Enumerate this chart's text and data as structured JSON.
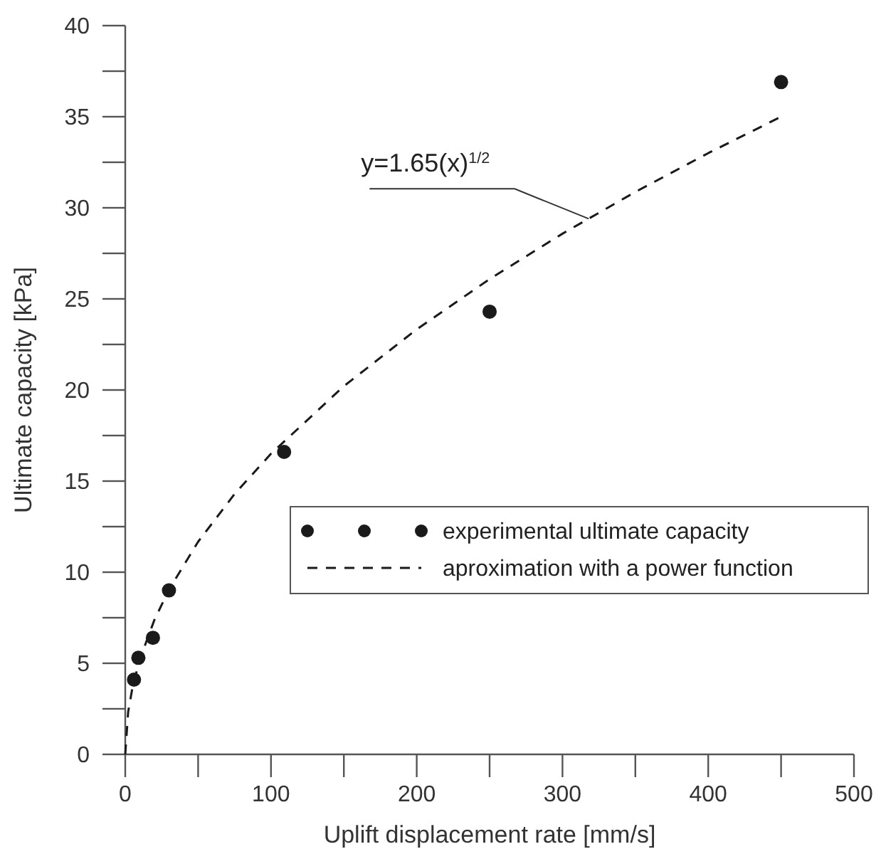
{
  "chart_data": {
    "type": "scatter",
    "xlabel": "Uplift displacement rate [mm/s]",
    "ylabel": "Ultimate capacity [kPa]",
    "xlim": [
      0,
      500
    ],
    "ylim": [
      0,
      40
    ],
    "xticks": [
      0,
      {
        "value": 50,
        "label": null
      },
      100,
      {
        "value": 150,
        "label": null
      },
      200,
      {
        "value": 250,
        "label": null
      },
      300,
      {
        "value": 350,
        "label": null
      },
      400,
      {
        "value": 450,
        "label": null
      },
      500
    ],
    "yticks": [
      0,
      {
        "value": 2.5,
        "label": null
      },
      5,
      {
        "value": 7.5,
        "label": null
      },
      10,
      {
        "value": 12.5,
        "label": null
      },
      15,
      {
        "value": 17.5,
        "label": null
      },
      20,
      {
        "value": 22.5,
        "label": null
      },
      25,
      {
        "value": 27.5,
        "label": null
      },
      30,
      {
        "value": 32.5,
        "label": null
      },
      35,
      {
        "value": 37.5,
        "label": null
      },
      40
    ],
    "grid": false,
    "legend": "right",
    "annotations": [
      {
        "text": "y=1.65(x)$^{1/2}$",
        "x": 318,
        "y": 29.4
      }
    ],
    "series": [
      {
        "name": "experimental ultimate capacity",
        "color": "#1a1a1a",
        "marker": "circle",
        "x": [
          6,
          9,
          19,
          30,
          109,
          250,
          450
        ],
        "values": [
          4.1,
          5.3,
          6.4,
          9.0,
          16.6,
          24.3,
          36.9
        ]
      },
      {
        "name": "aproximation with a power function",
        "type": "line",
        "color": "#1a1a1a",
        "line_style": "dashed",
        "x": [
          0,
          2,
          5,
          10,
          20,
          30,
          50,
          75,
          100,
          150,
          200,
          250,
          300,
          350,
          400,
          450
        ],
        "values": [
          0,
          2.33,
          3.69,
          5.22,
          7.38,
          9.04,
          11.67,
          14.29,
          16.5,
          20.21,
          23.33,
          26.09,
          28.58,
          30.87,
          33.0,
          35.0
        ]
      }
    ]
  }
}
